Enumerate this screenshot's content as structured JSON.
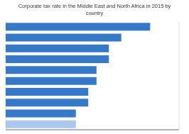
{
  "chart_data": {
    "type": "bar",
    "title": "Corporate tax rate in the Middle East and North Africa in 2015 by\ncountry",
    "categories": [
      null,
      null,
      null,
      null,
      null,
      null,
      null,
      null,
      null,
      null
    ],
    "values": [
      35,
      28,
      25,
      25,
      22,
      22,
      20,
      20,
      17,
      17
    ],
    "colors": [
      "#3579c8",
      "#3579c8",
      "#3579c8",
      "#3579c8",
      "#3579c8",
      "#3579c8",
      "#3579c8",
      "#3579c8",
      "#3579c8",
      "#aac8f0"
    ],
    "orientation": "horizontal",
    "xlim": [
      0,
      42
    ],
    "xticks": [
      0,
      10,
      20,
      30,
      40
    ],
    "grid": true,
    "tick_labels": false
  }
}
